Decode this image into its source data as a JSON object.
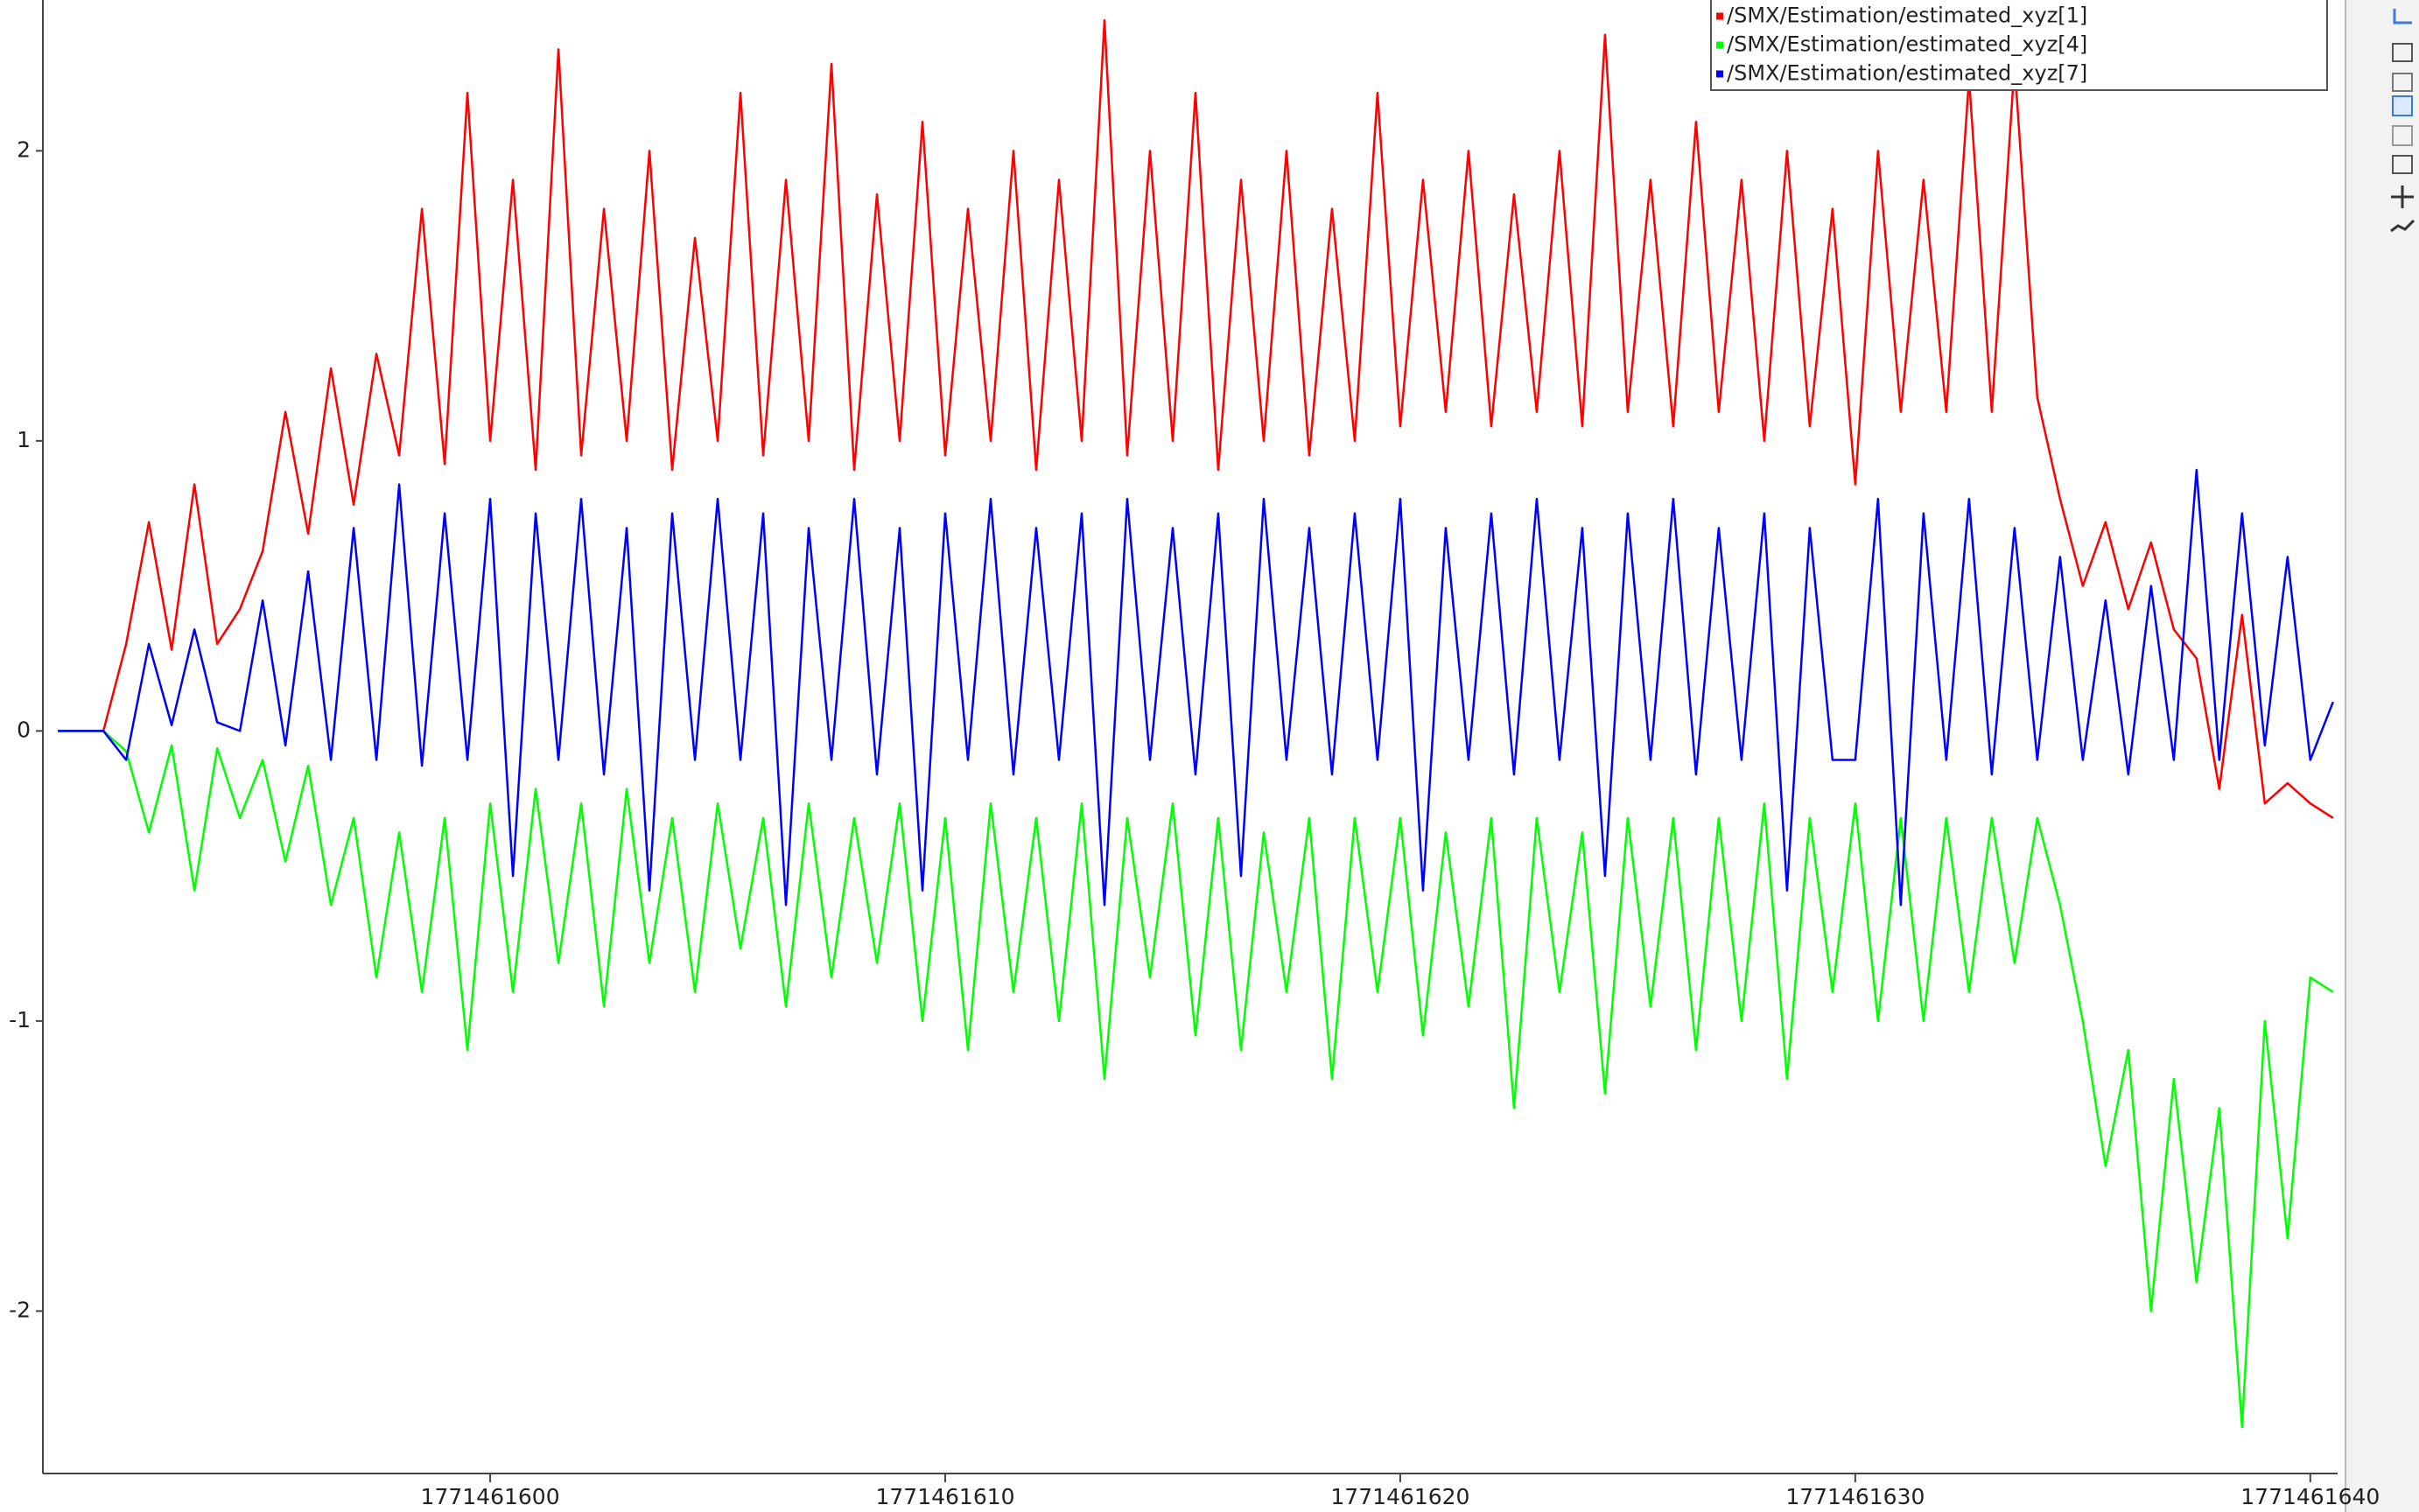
{
  "chart_data": {
    "type": "line",
    "x": [
      1771461590.5,
      1771461591,
      1771461591.5,
      1771461592,
      1771461592.5,
      1771461593,
      1771461593.5,
      1771461594,
      1771461594.5,
      1771461595,
      1771461595.5,
      1771461596,
      1771461596.5,
      1771461597,
      1771461597.5,
      1771461598,
      1771461598.5,
      1771461599,
      1771461599.5,
      1771461600,
      1771461600.5,
      1771461601,
      1771461601.5,
      1771461602,
      1771461602.5,
      1771461603,
      1771461603.5,
      1771461604,
      1771461604.5,
      1771461605,
      1771461605.5,
      1771461606,
      1771461606.5,
      1771461607,
      1771461607.5,
      1771461608,
      1771461608.5,
      1771461609,
      1771461609.5,
      1771461610,
      1771461610.5,
      1771461611,
      1771461611.5,
      1771461612,
      1771461612.5,
      1771461613,
      1771461613.5,
      1771461614,
      1771461614.5,
      1771461615,
      1771461615.5,
      1771461616,
      1771461616.5,
      1771461617,
      1771461617.5,
      1771461618,
      1771461618.5,
      1771461619,
      1771461619.5,
      1771461620,
      1771461620.5,
      1771461621,
      1771461621.5,
      1771461622,
      1771461622.5,
      1771461623,
      1771461623.5,
      1771461624,
      1771461624.5,
      1771461625,
      1771461625.5,
      1771461626,
      1771461626.5,
      1771461627,
      1771461627.5,
      1771461628,
      1771461628.5,
      1771461629,
      1771461629.5,
      1771461630,
      1771461630.5,
      1771461631,
      1771461631.5,
      1771461632,
      1771461632.5,
      1771461633,
      1771461633.5,
      1771461634,
      1771461634.5,
      1771461635,
      1771461635.5,
      1771461636,
      1771461636.5,
      1771461637,
      1771461637.5,
      1771461638,
      1771461638.5,
      1771461639,
      1771461639.5,
      1771461640,
      1771461640.5
    ],
    "series": [
      {
        "name": "/SMX/Estimation/estimated_xyz[1]",
        "color": "#ff0000",
        "values": [
          0,
          0,
          0,
          0.3,
          0.72,
          0.28,
          0.85,
          0.3,
          0.42,
          0.62,
          1.1,
          0.68,
          1.25,
          0.78,
          1.3,
          0.95,
          1.8,
          0.92,
          2.2,
          1.0,
          1.9,
          0.9,
          2.35,
          0.95,
          1.8,
          1.0,
          2.0,
          0.9,
          1.7,
          1.0,
          2.2,
          0.95,
          1.9,
          1.0,
          2.3,
          0.9,
          1.85,
          1.0,
          2.1,
          0.95,
          1.8,
          1.0,
          2.0,
          0.9,
          1.9,
          1.0,
          2.45,
          0.95,
          2.0,
          1.0,
          2.2,
          0.9,
          1.9,
          1.0,
          2.0,
          0.95,
          1.8,
          1.0,
          2.2,
          1.05,
          1.9,
          1.1,
          2.0,
          1.05,
          1.85,
          1.1,
          2.0,
          1.05,
          2.4,
          1.1,
          1.9,
          1.05,
          2.1,
          1.1,
          1.9,
          1.0,
          2.0,
          1.05,
          1.8,
          0.85,
          2.0,
          1.1,
          1.9,
          1.1,
          2.25,
          1.1,
          2.3,
          1.15,
          0.8,
          0.5,
          0.72,
          0.42,
          0.65,
          0.35,
          0.25,
          -0.2,
          0.4,
          -0.25,
          -0.18,
          -0.25,
          -0.3
        ]
      },
      {
        "name": "/SMX/Estimation/estimated_xyz[4]",
        "color": "#00ff00",
        "values": [
          0,
          0,
          0,
          -0.07,
          -0.35,
          -0.05,
          -0.55,
          -0.06,
          -0.3,
          -0.1,
          -0.45,
          -0.12,
          -0.6,
          -0.3,
          -0.85,
          -0.35,
          -0.9,
          -0.3,
          -1.1,
          -0.25,
          -0.9,
          -0.2,
          -0.8,
          -0.25,
          -0.95,
          -0.2,
          -0.8,
          -0.3,
          -0.9,
          -0.25,
          -0.75,
          -0.3,
          -0.95,
          -0.25,
          -0.85,
          -0.3,
          -0.8,
          -0.25,
          -1.0,
          -0.3,
          -1.1,
          -0.25,
          -0.9,
          -0.3,
          -1.0,
          -0.25,
          -1.2,
          -0.3,
          -0.85,
          -0.25,
          -1.05,
          -0.3,
          -1.1,
          -0.35,
          -0.9,
          -0.3,
          -1.2,
          -0.3,
          -0.9,
          -0.3,
          -1.05,
          -0.35,
          -0.95,
          -0.3,
          -1.3,
          -0.3,
          -0.9,
          -0.35,
          -1.25,
          -0.3,
          -0.95,
          -0.3,
          -1.1,
          -0.3,
          -1.0,
          -0.25,
          -1.2,
          -0.3,
          -0.9,
          -0.25,
          -1.0,
          -0.3,
          -1.0,
          -0.3,
          -0.9,
          -0.3,
          -0.8,
          -0.3,
          -0.6,
          -1.0,
          -1.5,
          -1.1,
          -2.0,
          -1.2,
          -1.9,
          -1.3,
          -2.4,
          -1.0,
          -1.75,
          -0.85,
          -0.9
        ]
      },
      {
        "name": "/SMX/Estimation/estimated_xyz[7]",
        "color": "#0000ff",
        "values": [
          0,
          0,
          0,
          -0.1,
          0.3,
          0.02,
          0.35,
          0.03,
          0.0,
          0.45,
          -0.05,
          0.55,
          -0.1,
          0.7,
          -0.1,
          0.85,
          -0.12,
          0.75,
          -0.1,
          0.8,
          -0.5,
          0.75,
          -0.1,
          0.8,
          -0.15,
          0.7,
          -0.55,
          0.75,
          -0.1,
          0.8,
          -0.1,
          0.75,
          -0.6,
          0.7,
          -0.1,
          0.8,
          -0.15,
          0.7,
          -0.55,
          0.75,
          -0.1,
          0.8,
          -0.15,
          0.7,
          -0.1,
          0.75,
          -0.6,
          0.8,
          -0.1,
          0.7,
          -0.15,
          0.75,
          -0.5,
          0.8,
          -0.1,
          0.7,
          -0.15,
          0.75,
          -0.1,
          0.8,
          -0.55,
          0.7,
          -0.1,
          0.75,
          -0.15,
          0.8,
          -0.1,
          0.7,
          -0.5,
          0.75,
          -0.1,
          0.8,
          -0.15,
          0.7,
          -0.1,
          0.75,
          -0.55,
          0.7,
          -0.1,
          -0.1,
          0.8,
          -0.6,
          0.75,
          -0.1,
          0.8,
          -0.15,
          0.7,
          -0.1,
          0.6,
          -0.1,
          0.45,
          -0.15,
          0.5,
          -0.1,
          0.9,
          -0.1,
          0.75,
          -0.05,
          0.6,
          -0.1,
          0.1
        ]
      }
    ],
    "xlim": [
      1771461590.17,
      1771461640.6
    ],
    "xticks": [
      1771461600,
      1771461610,
      1771461620,
      1771461630,
      1771461640
    ],
    "ylim": [
      -2.56,
      2.52
    ],
    "yticks": [
      -2,
      -1,
      0,
      1,
      2
    ],
    "legend": "top-right"
  }
}
